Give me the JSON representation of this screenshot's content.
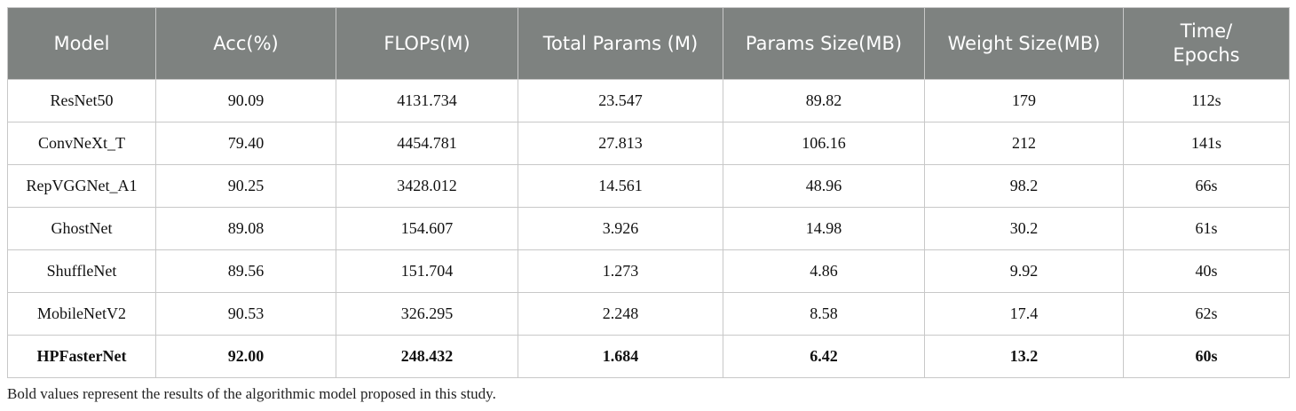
{
  "table": {
    "header": [
      "Model",
      "Acc(%)",
      "FLOPs(M)",
      "Total Params (M)",
      "Params Size(MB)",
      "Weight Size(MB)",
      "Time/\nEpochs"
    ],
    "rows": [
      [
        "ResNet50",
        "90.09",
        "4131.734",
        "23.547",
        "89.82",
        "179",
        "112s"
      ],
      [
        "ConvNeXt_T",
        "79.40",
        "4454.781",
        "27.813",
        "106.16",
        "212",
        "141s"
      ],
      [
        "RepVGGNet_A1",
        "90.25",
        "3428.012",
        "14.561",
        "48.96",
        "98.2",
        "66s"
      ],
      [
        "GhostNet",
        "89.08",
        "154.607",
        "3.926",
        "14.98",
        "30.2",
        "61s"
      ],
      [
        "ShuffleNet",
        "89.56",
        "151.704",
        "1.273",
        "4.86",
        "9.92",
        "40s"
      ],
      [
        "MobileNetV2",
        "90.53",
        "326.295",
        "2.248",
        "8.58",
        "17.4",
        "62s"
      ],
      [
        "HPFasterNet",
        "92.00",
        "248.432",
        "1.684",
        "6.42",
        "13.2",
        "60s"
      ]
    ],
    "footnote": "Bold values represent the results of the algorithmic model proposed in this study."
  }
}
